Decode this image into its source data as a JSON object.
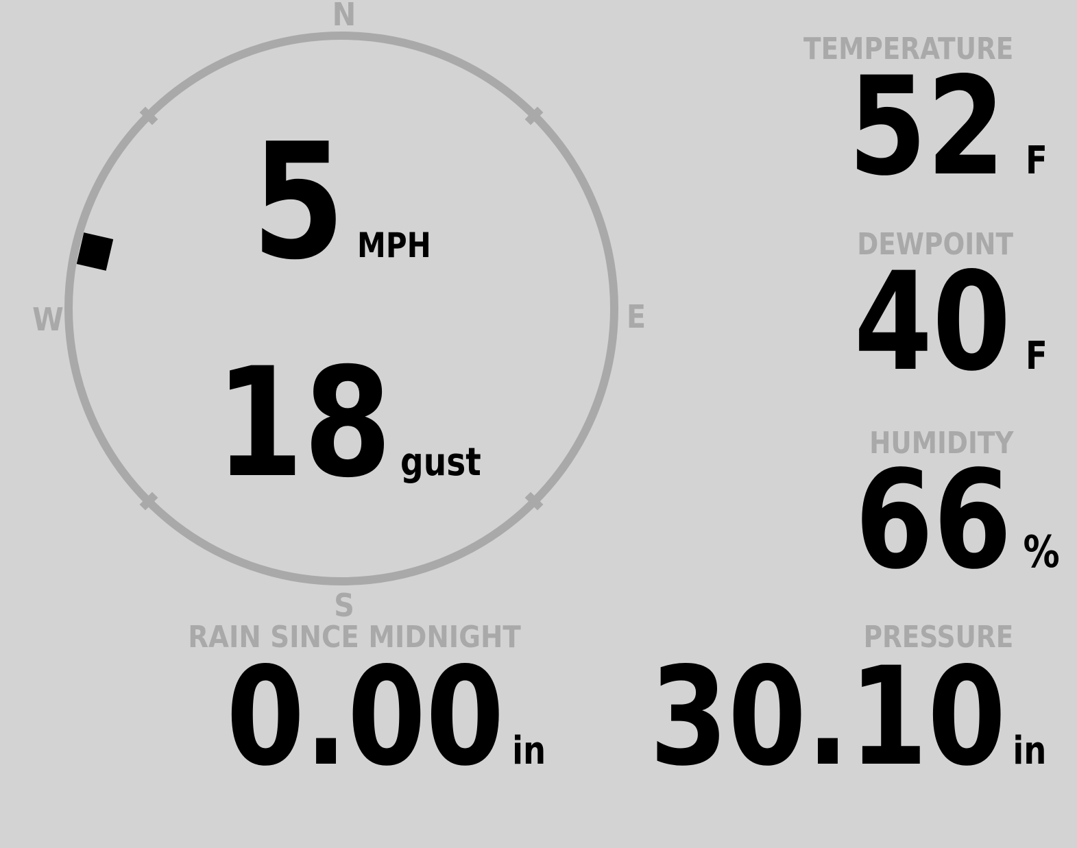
{
  "colors": {
    "background": "#d3d3d3",
    "muted": "#a9a9a9",
    "value": "#000000"
  },
  "compass": {
    "labels": {
      "north": "N",
      "east": "E",
      "south": "S",
      "west": "W"
    },
    "wind_direction_deg": 283,
    "speed": {
      "value": "5",
      "unit": "MPH"
    },
    "gust": {
      "value": "18",
      "unit": "gust"
    }
  },
  "metrics": {
    "temperature": {
      "label": "TEMPERATURE",
      "value": "52",
      "unit": "F"
    },
    "dewpoint": {
      "label": "DEWPOINT",
      "value": "40",
      "unit": "F"
    },
    "humidity": {
      "label": "HUMIDITY",
      "value": "66",
      "unit": "%"
    },
    "pressure": {
      "label": "PRESSURE",
      "value": "30.10",
      "unit": "in"
    },
    "rain": {
      "label": "RAIN SINCE MIDNIGHT",
      "value": "0.00",
      "unit": "in"
    }
  }
}
